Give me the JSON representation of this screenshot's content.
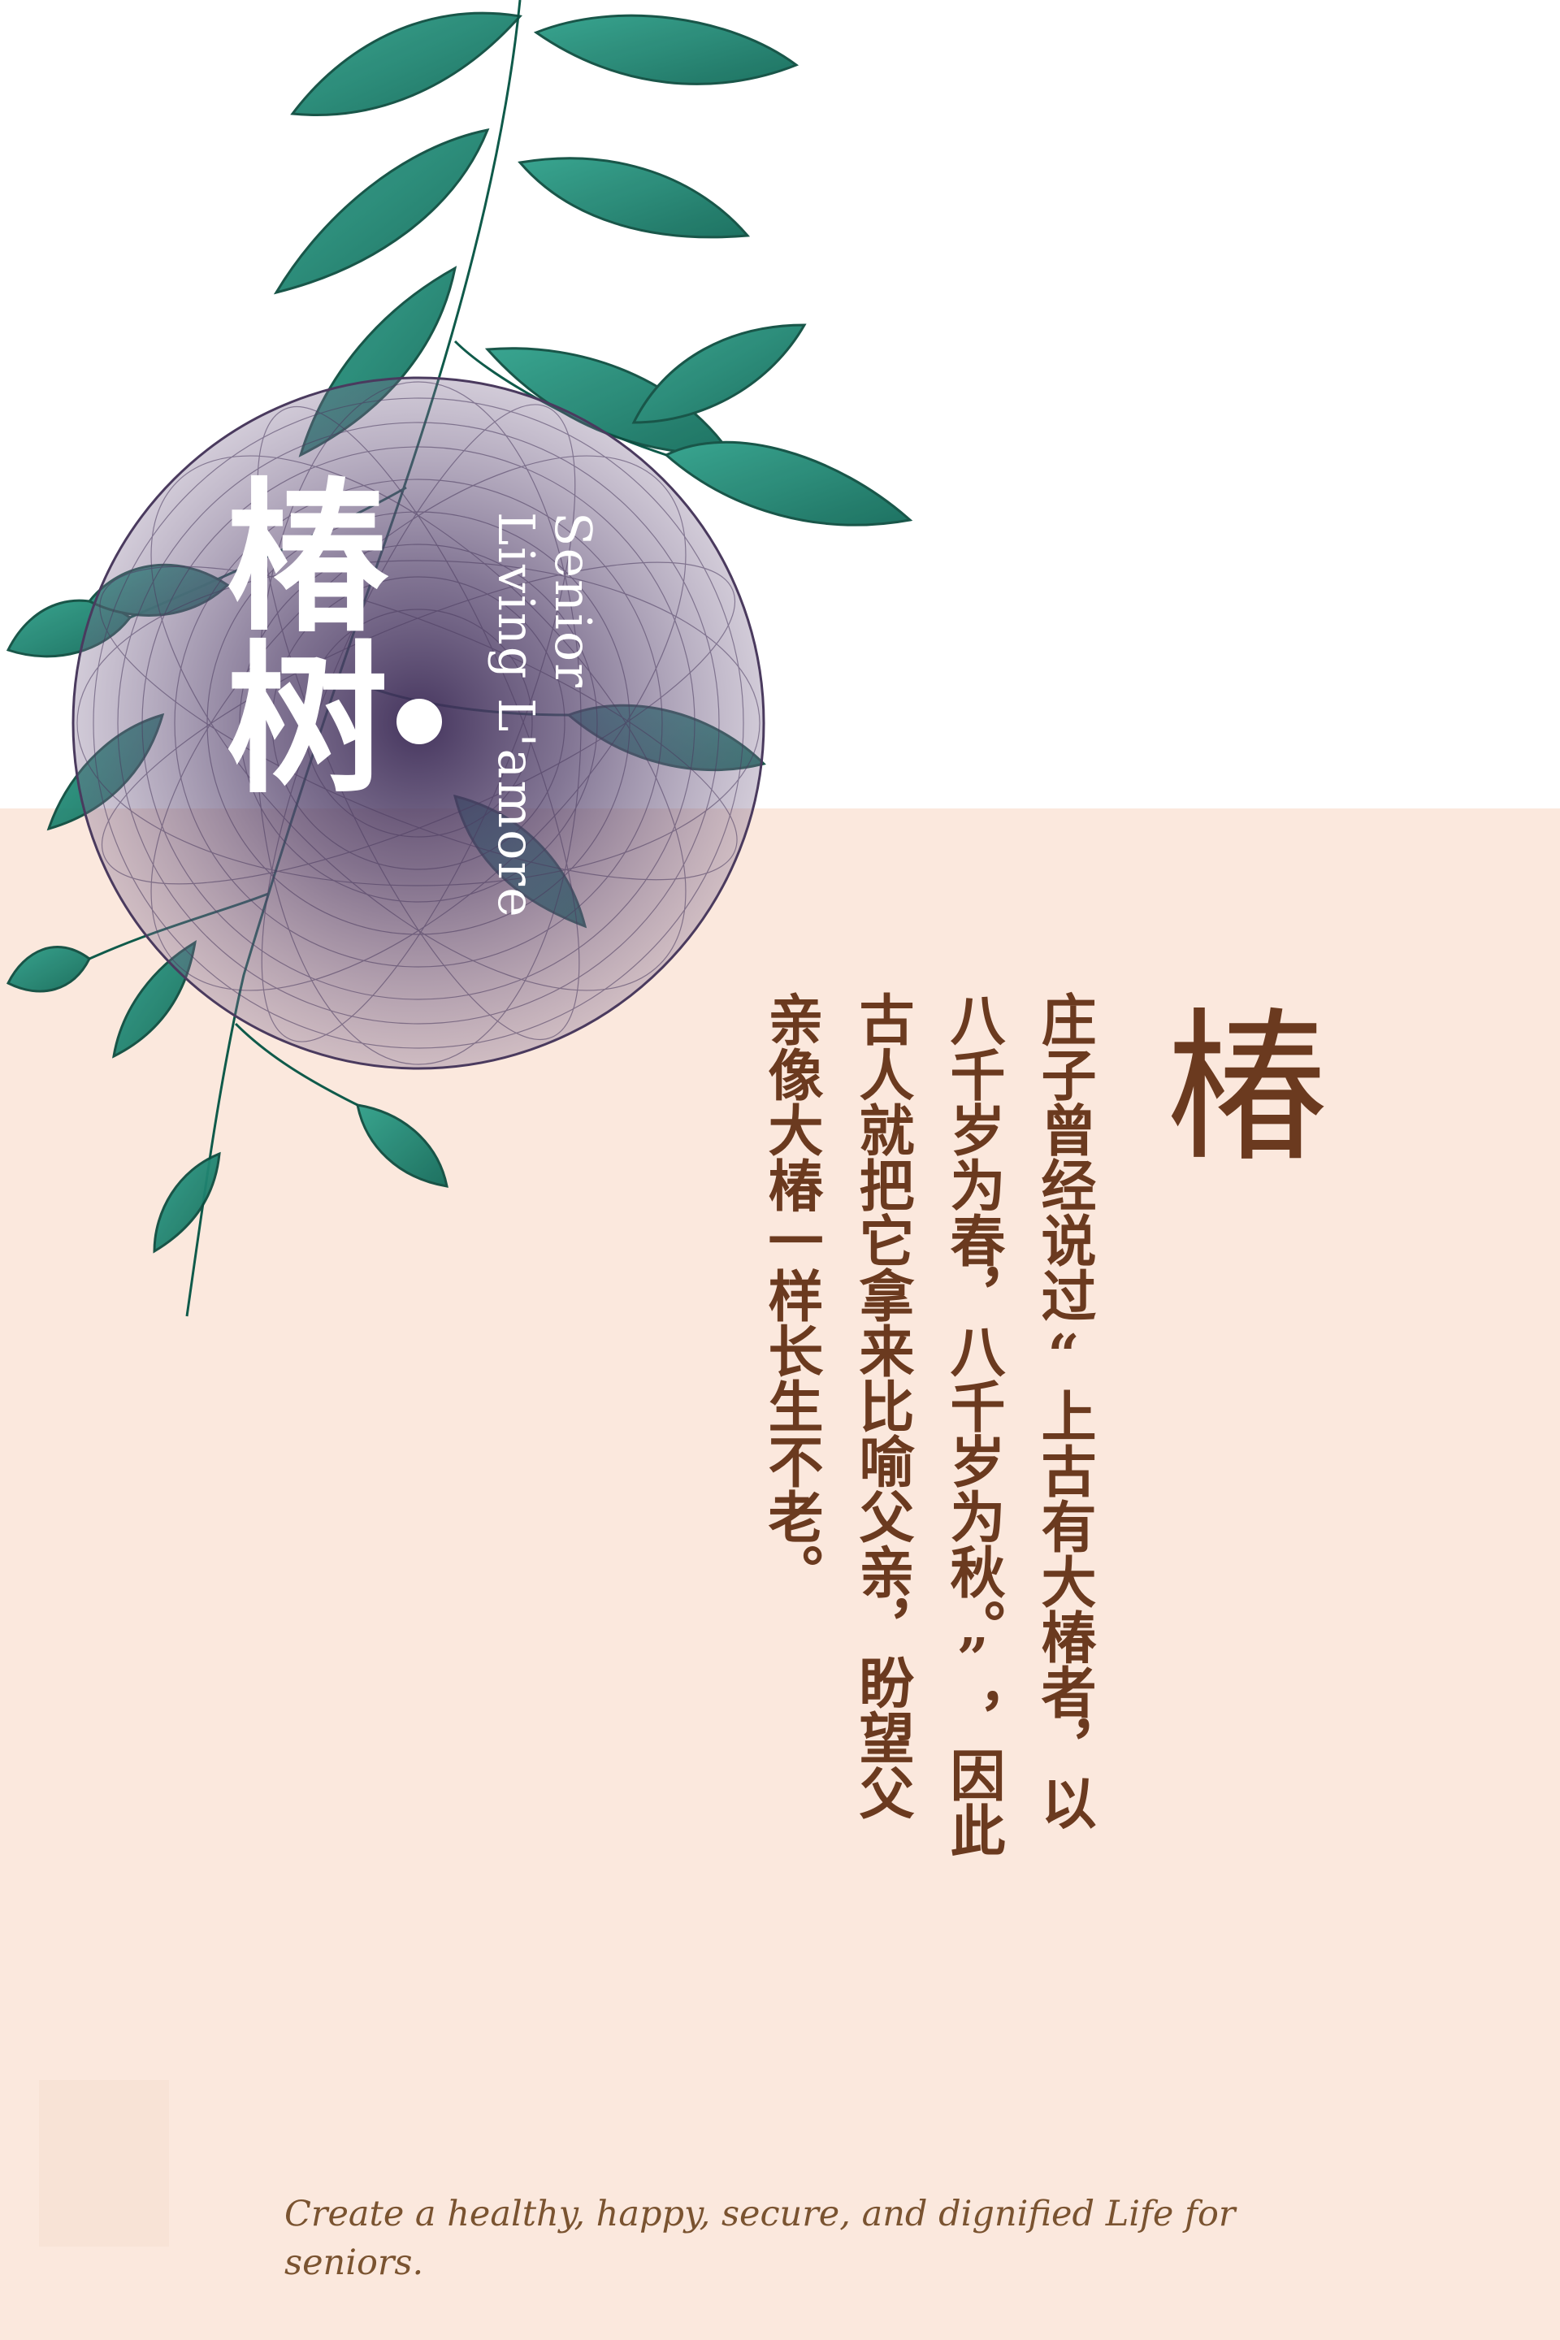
{
  "title": {
    "chinese": "椿树",
    "english_line1": "Senior",
    "english_line2": "Living L'amore"
  },
  "heading_char": "椿",
  "poem_lines": [
    "庄子曾经说过“上古有大椿者，以",
    "八千岁为春，八千岁为秋。”，因此",
    "古人就把它拿来比喻父亲，盼望父",
    "亲像大椿一样长生不老。"
  ],
  "tagline": "Create a healthy, happy, secure, and dignified Life for seniors.",
  "colors": {
    "peach_background": "#fbe8dd",
    "text_brown": "#6b3a1f",
    "leaf_teal": "#1f8a76",
    "seal_purple": "#4a3a5e"
  },
  "icons": [
    "botanical-plant-illustration",
    "guilloche-seal-icon"
  ]
}
